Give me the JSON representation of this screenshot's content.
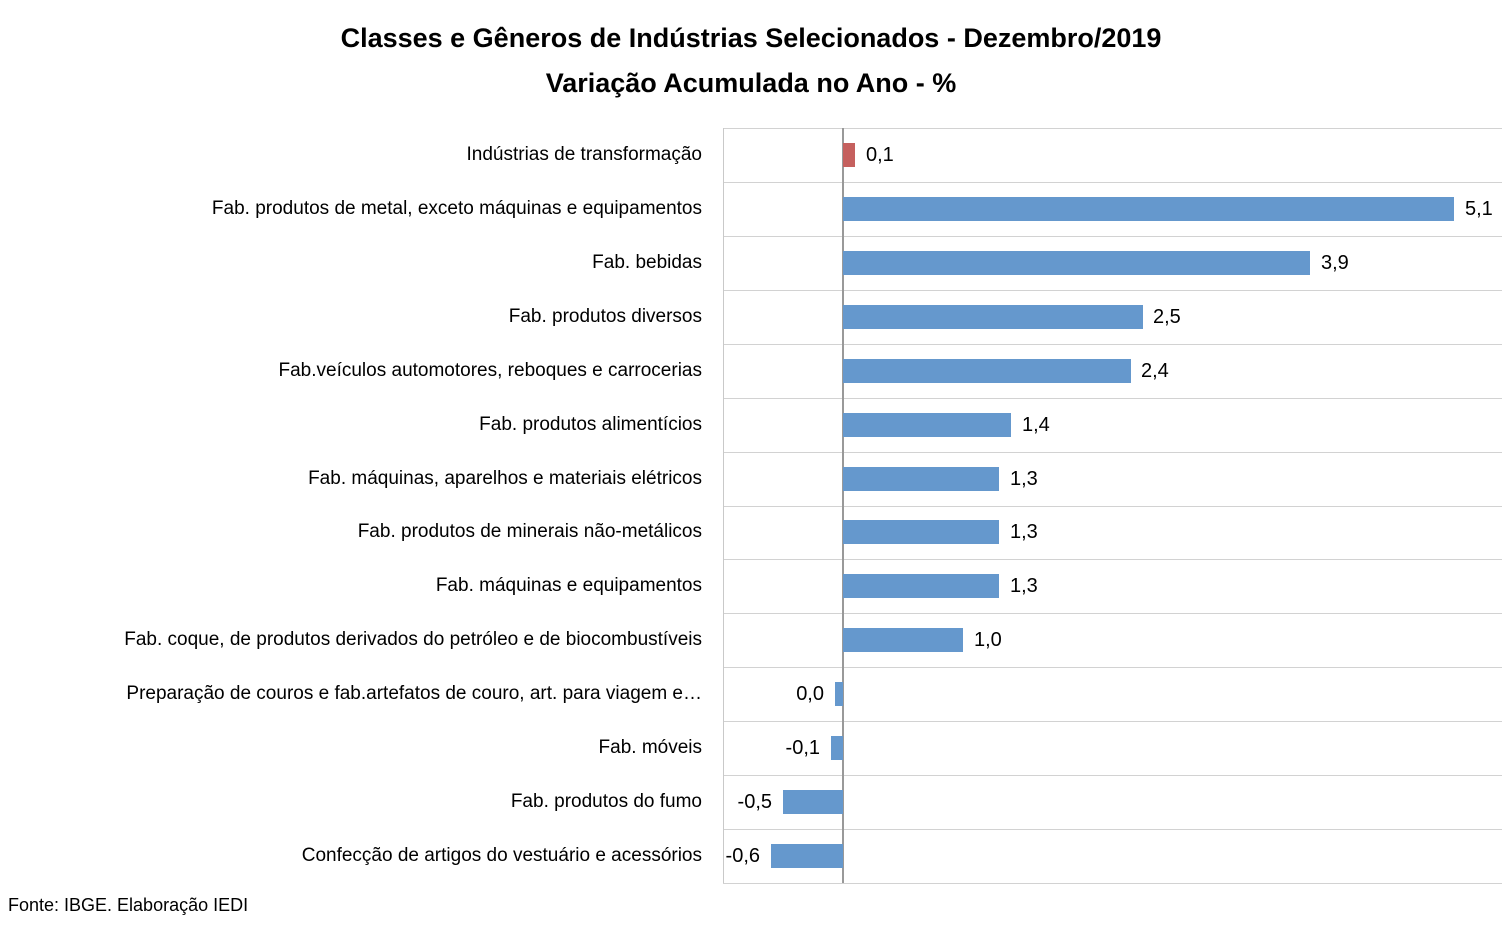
{
  "chart_data": {
    "type": "bar",
    "orientation": "horizontal",
    "title_line1": "Classes e Gêneros de Indústrias Selecionados - Dezembro/2019",
    "title_line2": "Variação Acumulada no Ano - %",
    "source": "Fonte: IBGE. Elaboração IEDI",
    "xlim": [
      -1.0,
      5.5
    ],
    "grid": "horizontal category separators on, no vertical gridlines",
    "legend": "none",
    "colors": {
      "bar": "#6598CD",
      "highlight": "#C5605E",
      "gridline": "#D2D2D2",
      "plot_border": "#C9C9C9",
      "axis": "#999999",
      "text": "#000000"
    },
    "rows": [
      {
        "label": "Indústrias de transformação",
        "value": 0.1,
        "display": "0,1",
        "highlight": true
      },
      {
        "label": "Fab. produtos de metal, exceto máquinas e equipamentos",
        "value": 5.1,
        "display": "5,1"
      },
      {
        "label": "Fab. bebidas",
        "value": 3.9,
        "display": "3,9"
      },
      {
        "label": "Fab. produtos diversos",
        "value": 2.5,
        "display": "2,5"
      },
      {
        "label": "Fab.veículos automotores, reboques e carrocerias",
        "value": 2.4,
        "display": "2,4"
      },
      {
        "label": "Fab. produtos alimentícios",
        "value": 1.4,
        "display": "1,4"
      },
      {
        "label": "Fab. máquinas, aparelhos e materiais elétricos",
        "value": 1.3,
        "display": "1,3"
      },
      {
        "label": "Fab. produtos de minerais não-metálicos",
        "value": 1.3,
        "display": "1,3"
      },
      {
        "label": "Fab. máquinas e equipamentos",
        "value": 1.3,
        "display": "1,3"
      },
      {
        "label": "Fab. coque, de produtos derivados do petróleo e de biocombustíveis",
        "value": 1.0,
        "display": "1,0"
      },
      {
        "label": "Preparação de couros e fab.artefatos de couro, art. para viagem e…",
        "value": 0.0,
        "display": "0,0"
      },
      {
        "label": "Fab. móveis",
        "value": -0.1,
        "display": "-0,1"
      },
      {
        "label": "Fab. produtos do fumo",
        "value": -0.5,
        "display": "-0,5"
      },
      {
        "label": "Confecção de artigos do vestuário e acessórios",
        "value": -0.6,
        "display": "-0,6"
      }
    ]
  }
}
